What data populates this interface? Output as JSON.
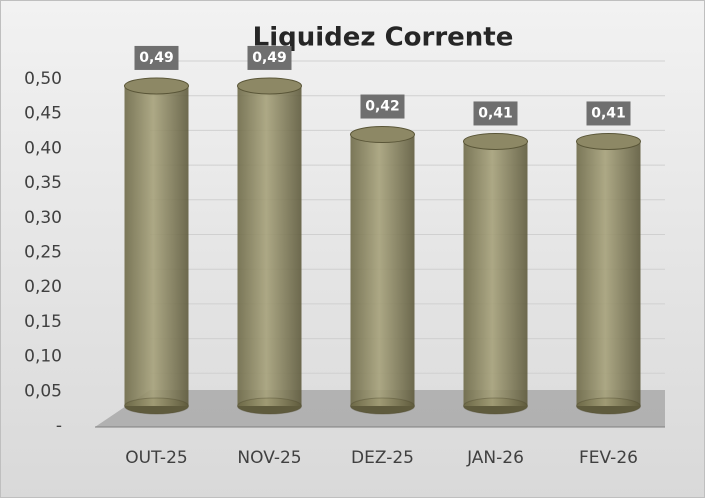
{
  "chart_data": {
    "type": "bar",
    "title": "Liquidez Corrente",
    "categories": [
      "OUT-25",
      "NOV-25",
      "DEZ-25",
      "JAN-26",
      "FEV-26"
    ],
    "values": [
      0.49,
      0.49,
      0.42,
      0.41,
      0.41
    ],
    "value_labels": [
      "0,49",
      "0,49",
      "0,42",
      "0,41",
      "0,41"
    ],
    "color": "#8a8560",
    "ylim": [
      0,
      0.5
    ],
    "yticks": [
      {
        "value": 0,
        "label": "-"
      },
      {
        "value": 0.05,
        "label": "0,05"
      },
      {
        "value": 0.1,
        "label": "0,10"
      },
      {
        "value": 0.15,
        "label": "0,15"
      },
      {
        "value": 0.2,
        "label": "0,20"
      },
      {
        "value": 0.25,
        "label": "0,25"
      },
      {
        "value": 0.3,
        "label": "0,30"
      },
      {
        "value": 0.35,
        "label": "0,35"
      },
      {
        "value": 0.4,
        "label": "0,40"
      },
      {
        "value": 0.45,
        "label": "0,45"
      },
      {
        "value": 0.5,
        "label": "0,50"
      }
    ],
    "grid": true
  }
}
